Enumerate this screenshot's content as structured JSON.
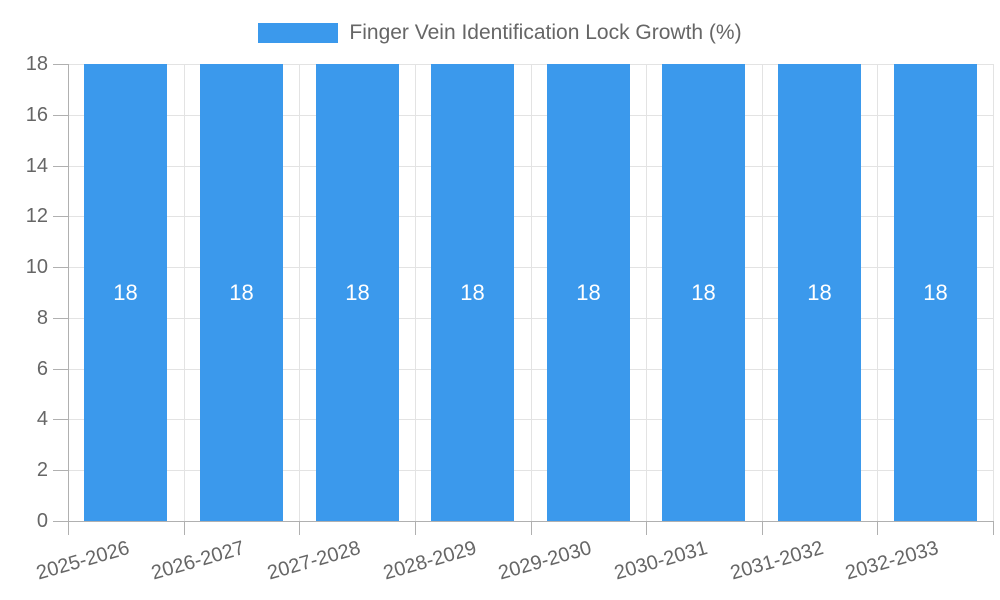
{
  "legend": {
    "label": "Finger Vein Identification Lock Growth (%)"
  },
  "chart_data": {
    "type": "bar",
    "title": "Finger Vein Identification Lock Growth (%)",
    "categories": [
      "2025-2026",
      "2026-2027",
      "2027-2028",
      "2028-2029",
      "2029-2030",
      "2030-2031",
      "2031-2032",
      "2032-2033"
    ],
    "values": [
      18,
      18,
      18,
      18,
      18,
      18,
      18,
      18
    ],
    "data_labels": [
      "18",
      "18",
      "18",
      "18",
      "18",
      "18",
      "18",
      "18"
    ],
    "yticks": [
      0,
      2,
      4,
      6,
      8,
      10,
      12,
      14,
      16,
      18
    ],
    "ylim": [
      0,
      18
    ],
    "xlabel": "",
    "ylabel": "",
    "grid": true,
    "legend_position": "top",
    "legend_entries": [
      "Finger Vein Identification Lock Growth (%)"
    ]
  },
  "colors": {
    "bar": "#3b99ec",
    "bar_label": "#ffffff",
    "grid": "#e3e3e3",
    "axis": "#b0b0b0",
    "tick_text": "#666666",
    "background": "#ffffff"
  }
}
